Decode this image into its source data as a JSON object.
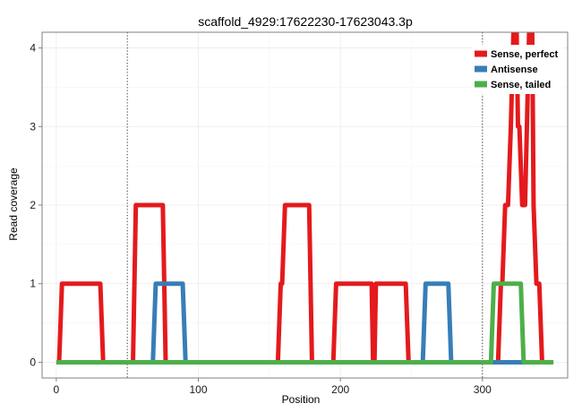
{
  "chart_data": {
    "type": "line",
    "title": "scaffold_4929:17622230-17623043.3p",
    "xlabel": "Position",
    "ylabel": "Read coverage",
    "xlim": [
      -10,
      360
    ],
    "ylim": [
      -0.2,
      4.2
    ],
    "x_ticks": [
      0,
      100,
      200,
      300
    ],
    "y_ticks": [
      0,
      1,
      2,
      3,
      4
    ],
    "y_clip_max": 4.2,
    "grid": true,
    "legend_position": "top-right",
    "vlines": [
      50,
      300
    ],
    "series": [
      {
        "name": "Sense, perfect",
        "color": "#e41a1c",
        "x": [
          2,
          4,
          31,
          33,
          54,
          56,
          75,
          77,
          156,
          158,
          159,
          161,
          178,
          180,
          195,
          197,
          222,
          223,
          224,
          225,
          226,
          228,
          246,
          248,
          311,
          313,
          314,
          316,
          318,
          320,
          322,
          324,
          325,
          326,
          328,
          330,
          333,
          335,
          336,
          338,
          340,
          342,
          348
        ],
        "y": [
          0,
          1,
          1,
          0,
          0,
          2,
          2,
          0,
          0,
          1,
          1,
          2,
          2,
          0,
          0,
          1,
          1,
          0,
          0,
          1,
          1,
          1,
          1,
          0,
          0,
          1,
          1,
          2,
          2,
          3,
          4.3,
          4.3,
          3,
          3,
          2,
          2,
          4.3,
          4.3,
          2,
          1,
          1,
          0,
          0
        ]
      },
      {
        "name": "Antisense",
        "color": "#377eb8",
        "x": [
          68,
          70,
          89,
          91,
          258,
          260,
          276,
          278,
          340
        ],
        "y": [
          0,
          1,
          1,
          0,
          0,
          1,
          1,
          0,
          0
        ]
      },
      {
        "name": "Sense, tailed",
        "color": "#4daf4a",
        "x": [
          0,
          306,
          308,
          327,
          329,
          350
        ],
        "y": [
          0,
          0,
          1,
          1,
          0,
          0
        ]
      }
    ]
  }
}
